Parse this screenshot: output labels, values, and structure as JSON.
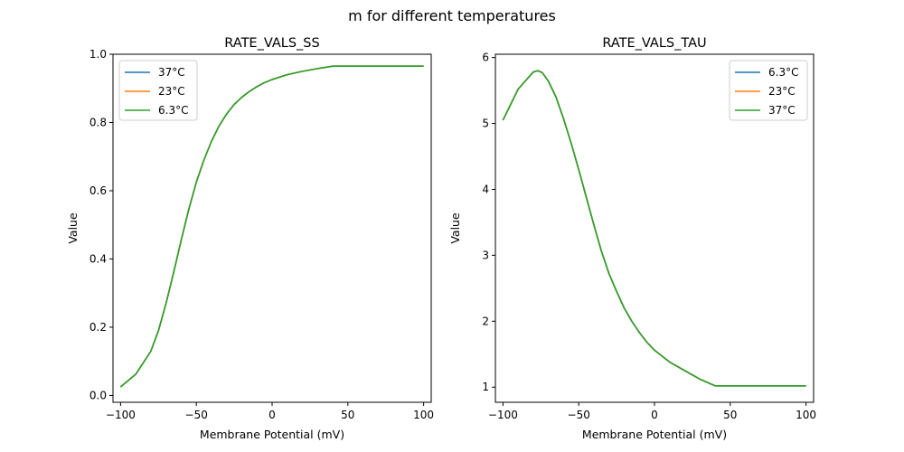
{
  "figure": {
    "suptitle": "m for different temperatures"
  },
  "chart_data": [
    {
      "type": "line",
      "title": "RATE_VALS_SS",
      "xlabel": "Membrane Potential (mV)",
      "ylabel": "Value",
      "xlim": [
        -105,
        105
      ],
      "ylim": [
        -0.02,
        1.0
      ],
      "xticks": [
        -100,
        -50,
        0,
        50,
        100
      ],
      "xtick_labels": [
        "−100",
        "−50",
        "0",
        "50",
        "100"
      ],
      "yticks": [
        0.0,
        0.2,
        0.4,
        0.6,
        0.8,
        1.0
      ],
      "ytick_labels": [
        "0.0",
        "0.2",
        "0.4",
        "0.6",
        "0.8",
        "1.0"
      ],
      "grid": false,
      "legend_position": "top-left",
      "x": [
        -100,
        -90,
        -80,
        -75,
        -70,
        -65,
        -60,
        -55,
        -50,
        -45,
        -40,
        -35,
        -30,
        -25,
        -20,
        -15,
        -10,
        -5,
        0,
        10,
        20,
        30,
        40,
        50,
        60,
        70,
        80,
        90,
        100
      ],
      "series": [
        {
          "name": "37°C",
          "color": "#1f77b4",
          "values": [
            0.025,
            0.062,
            0.13,
            0.19,
            0.27,
            0.36,
            0.455,
            0.545,
            0.625,
            0.69,
            0.745,
            0.79,
            0.825,
            0.853,
            0.874,
            0.891,
            0.905,
            0.917,
            0.926,
            0.94,
            0.95,
            0.958,
            0.965,
            0.965,
            0.965,
            0.965,
            0.965,
            0.965,
            0.965
          ]
        },
        {
          "name": "23°C",
          "color": "#ff7f0e",
          "values": [
            0.025,
            0.062,
            0.13,
            0.19,
            0.27,
            0.36,
            0.455,
            0.545,
            0.625,
            0.69,
            0.745,
            0.79,
            0.825,
            0.853,
            0.874,
            0.891,
            0.905,
            0.917,
            0.926,
            0.94,
            0.95,
            0.958,
            0.965,
            0.965,
            0.965,
            0.965,
            0.965,
            0.965,
            0.965
          ]
        },
        {
          "name": "6.3°C",
          "color": "#2ca02c",
          "values": [
            0.025,
            0.062,
            0.13,
            0.19,
            0.27,
            0.36,
            0.455,
            0.545,
            0.625,
            0.69,
            0.745,
            0.79,
            0.825,
            0.853,
            0.874,
            0.891,
            0.905,
            0.917,
            0.926,
            0.94,
            0.95,
            0.958,
            0.965,
            0.965,
            0.965,
            0.965,
            0.965,
            0.965,
            0.965
          ]
        }
      ]
    },
    {
      "type": "line",
      "title": "RATE_VALS_TAU",
      "xlabel": "Membrane Potential (mV)",
      "ylabel": "Value",
      "xlim": [
        -105,
        105
      ],
      "ylim": [
        0.77,
        6.05
      ],
      "xticks": [
        -100,
        -50,
        0,
        50,
        100
      ],
      "xtick_labels": [
        "−100",
        "−50",
        "0",
        "50",
        "100"
      ],
      "yticks": [
        1,
        2,
        3,
        4,
        5,
        6
      ],
      "ytick_labels": [
        "1",
        "2",
        "3",
        "4",
        "5",
        "6"
      ],
      "grid": false,
      "legend_position": "top-right",
      "x": [
        -100,
        -90,
        -80,
        -77,
        -74,
        -70,
        -65,
        -60,
        -55,
        -50,
        -45,
        -40,
        -35,
        -30,
        -25,
        -20,
        -15,
        -10,
        -5,
        0,
        10,
        20,
        30,
        40,
        50,
        60,
        70,
        80,
        90,
        100
      ],
      "series": [
        {
          "name": "6.3°C",
          "color": "#1f77b4",
          "values": [
            5.05,
            5.52,
            5.78,
            5.8,
            5.77,
            5.64,
            5.4,
            5.07,
            4.7,
            4.3,
            3.88,
            3.46,
            3.06,
            2.72,
            2.45,
            2.2,
            2.0,
            1.83,
            1.68,
            1.56,
            1.38,
            1.25,
            1.12,
            1.02,
            1.02,
            1.02,
            1.02,
            1.02,
            1.02,
            1.02
          ]
        },
        {
          "name": "23°C",
          "color": "#ff7f0e",
          "values": [
            5.05,
            5.52,
            5.78,
            5.8,
            5.77,
            5.64,
            5.4,
            5.07,
            4.7,
            4.3,
            3.88,
            3.46,
            3.06,
            2.72,
            2.45,
            2.2,
            2.0,
            1.83,
            1.68,
            1.56,
            1.38,
            1.25,
            1.12,
            1.02,
            1.02,
            1.02,
            1.02,
            1.02,
            1.02,
            1.02
          ]
        },
        {
          "name": "37°C",
          "color": "#2ca02c",
          "values": [
            5.05,
            5.52,
            5.78,
            5.8,
            5.77,
            5.64,
            5.4,
            5.07,
            4.7,
            4.3,
            3.88,
            3.46,
            3.06,
            2.72,
            2.45,
            2.2,
            2.0,
            1.83,
            1.68,
            1.56,
            1.38,
            1.25,
            1.12,
            1.02,
            1.02,
            1.02,
            1.02,
            1.02,
            1.02,
            1.02
          ]
        }
      ]
    }
  ]
}
